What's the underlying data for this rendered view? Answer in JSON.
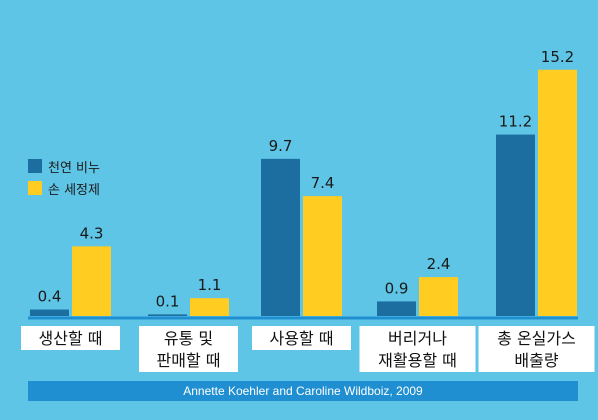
{
  "colors": {
    "background": "#5fc5e6",
    "series_natural": "#1d6ea0",
    "series_handwash": "#ffcc22",
    "baseline": "#1f8fd1",
    "label_box": "#ffffff",
    "source_bar": "#1f8fd1"
  },
  "source": "Annette Koehler and Caroline Wildboiz, 2009",
  "chart_data": {
    "type": "bar",
    "categories": [
      [
        "생산할 때"
      ],
      [
        "유통 및",
        "판매할 때"
      ],
      [
        "사용할 때"
      ],
      [
        "버리거나",
        "재활용할 때"
      ],
      [
        "총 온실가스",
        "배출량"
      ]
    ],
    "series": [
      {
        "name": "천연 비누",
        "values": [
          0.4,
          0.1,
          9.7,
          0.9,
          11.2
        ]
      },
      {
        "name": "손 세정제",
        "values": [
          4.3,
          1.1,
          7.4,
          2.4,
          15.2
        ]
      }
    ],
    "value_labels": [
      [
        "0.4",
        "0.1",
        "9.7",
        "0.9",
        "11.2"
      ],
      [
        "4.3",
        "1.1",
        "7.4",
        "2.4",
        "15.2"
      ]
    ],
    "ylim": [
      0,
      16
    ],
    "grid": false,
    "legend_position": "left"
  }
}
